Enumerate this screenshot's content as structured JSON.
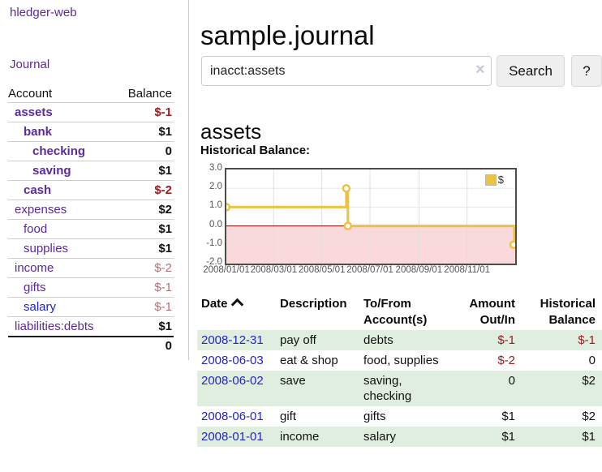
{
  "colors": {
    "purple": "#5b2a9b",
    "blue": "#2323cc",
    "neg": "#9d1c20",
    "negsoft": "#b57175",
    "rowgreen": "#dfeedf",
    "gold": "#edc240",
    "pink": "#f9d9d9",
    "zero": "#8b0000"
  },
  "app": {
    "brand": "hledger-web",
    "nav_journal": "Journal"
  },
  "sidebar": {
    "headers": {
      "account": "Account",
      "balance": "Balance"
    },
    "rows": [
      {
        "account": "assets",
        "balance": "$-1",
        "level": 0,
        "bold": true
      },
      {
        "account": "bank",
        "balance": "$1",
        "level": 1,
        "bold": true
      },
      {
        "account": "checking",
        "balance": "0",
        "level": 2,
        "bold": true
      },
      {
        "account": "saving",
        "balance": "$1",
        "level": 2,
        "bold": true
      },
      {
        "account": "cash",
        "balance": "$-2",
        "level": 1,
        "bold": true
      },
      {
        "account": "expenses",
        "balance": "$2",
        "level": 0,
        "bold": false
      },
      {
        "account": "food",
        "balance": "$1",
        "level": 1,
        "bold": false
      },
      {
        "account": "supplies",
        "balance": "$1",
        "level": 1,
        "bold": false
      },
      {
        "account": "income",
        "balance": "$-2",
        "level": 0,
        "bold": false
      },
      {
        "account": "gifts",
        "balance": "$-1",
        "level": 1,
        "bold": false
      },
      {
        "account": "salary",
        "balance": "$-1",
        "level": 1,
        "bold": false,
        "blue": true
      },
      {
        "account": "liabilities:debts",
        "balance": "$1",
        "level": 0,
        "bold": false
      }
    ],
    "total": "0"
  },
  "header": {
    "title": "sample.journal"
  },
  "search": {
    "value": "inacct:assets",
    "clear_icon": "×",
    "button_label": "Search",
    "help_label": "?"
  },
  "account_page": {
    "heading": "assets",
    "chart_label": "Historical Balance:"
  },
  "chart_data": {
    "type": "line",
    "title": "Historical Balance",
    "steps": true,
    "legend": "$",
    "legend_position": "top-right",
    "grid": true,
    "ylim": [
      -2,
      3
    ],
    "x_total_days": 366,
    "y_ticks": [
      {
        "label": "3.0",
        "value": 3
      },
      {
        "label": "2.0",
        "value": 2
      },
      {
        "label": "1.0",
        "value": 1
      },
      {
        "label": "0.0",
        "value": 0
      },
      {
        "label": "-1.0",
        "value": -1
      },
      {
        "label": "-2.0",
        "value": -2
      }
    ],
    "y_gridlines": [
      2,
      1,
      -1
    ],
    "x_ticks": [
      {
        "label": "2008/01/01",
        "day": 0
      },
      {
        "label": "2008/03/01",
        "day": 60
      },
      {
        "label": "2008/05/01",
        "day": 121
      },
      {
        "label": "2008/07/01",
        "day": 182
      },
      {
        "label": "2008/09/01",
        "day": 244
      },
      {
        "label": "2008/11/01",
        "day": 305
      }
    ],
    "series": [
      {
        "name": "$",
        "points": [
          {
            "date": "2008-01-01",
            "day": 0,
            "value": 1
          },
          {
            "date": "2008-06-01",
            "day": 152,
            "value": 2
          },
          {
            "date": "2008-06-03",
            "day": 154,
            "value": 0
          },
          {
            "date": "2008-12-31",
            "day": 365,
            "value": -1
          }
        ]
      }
    ]
  },
  "transactions": {
    "headers": {
      "date": "Date",
      "description": "Description",
      "account": "To/From Account(s)",
      "amount": "Amount Out/In",
      "balance": "Historical Balance"
    },
    "rows": [
      {
        "date": "2008-12-31",
        "description": "pay off",
        "accounts": "debts",
        "amount": "$-1",
        "balance": "$-1"
      },
      {
        "date": "2008-06-03",
        "description": "eat & shop",
        "accounts": "food, supplies",
        "amount": "$-2",
        "balance": "0"
      },
      {
        "date": "2008-06-02",
        "description": "save",
        "accounts": "saving, checking",
        "amount": "0",
        "balance": "$2"
      },
      {
        "date": "2008-06-01",
        "description": "gift",
        "accounts": "gifts",
        "amount": "$1",
        "balance": "$2"
      },
      {
        "date": "2008-01-01",
        "description": "income",
        "accounts": "salary",
        "amount": "$1",
        "balance": "$1"
      }
    ]
  }
}
